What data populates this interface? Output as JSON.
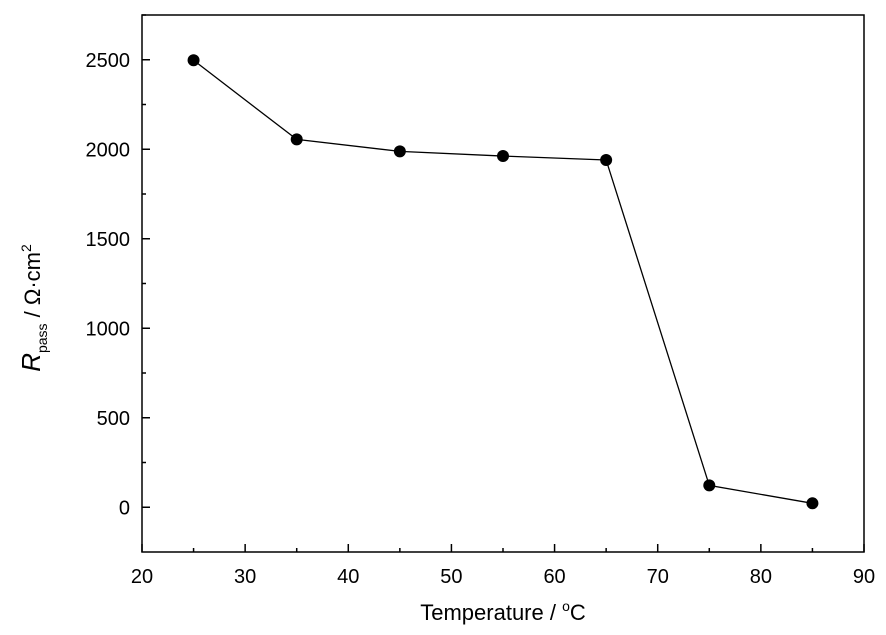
{
  "chart_data": {
    "type": "line",
    "x": [
      25,
      35,
      45,
      55,
      65,
      75,
      85
    ],
    "series": [
      {
        "values": [
          2497,
          2055,
          1988,
          1962,
          1940,
          122,
          22
        ]
      }
    ],
    "xlim": [
      20,
      90
    ],
    "ylim": [
      -250,
      2750
    ],
    "xticks": [
      "20",
      "30",
      "40",
      "50",
      "60",
      "70",
      "80",
      "90"
    ],
    "yticks": [
      "0",
      "500",
      "1000",
      "1500",
      "2000",
      "2500"
    ],
    "xlabel": {
      "main": "Temperature / ",
      "sup": "o",
      "unit": "C"
    },
    "ylabel": {
      "symbol": "R",
      "sub": "pass",
      "rest": " / Ω·cm",
      "sup": "2"
    },
    "grid": false,
    "marker": "filled-circle",
    "colors": {
      "line": "#000000",
      "marker": "#000000"
    }
  }
}
